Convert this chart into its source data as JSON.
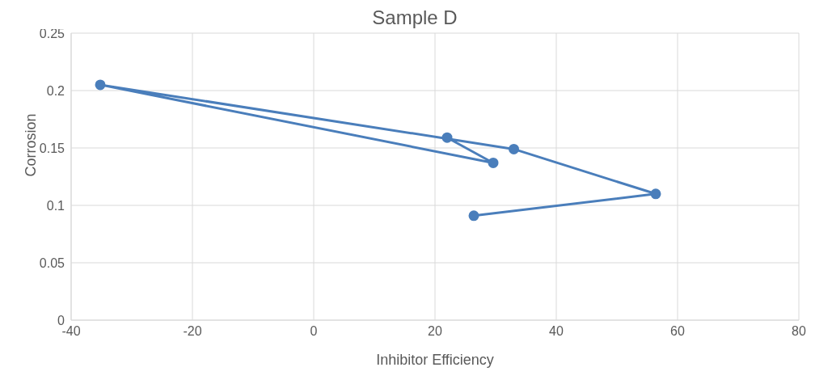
{
  "chart_data": {
    "type": "line",
    "title": "Sample D",
    "xlabel": "Inhibitor Efficiency",
    "ylabel": "Corrosion",
    "series": [
      {
        "color": "#4a7ebb",
        "x": [
          26.4,
          56.4,
          33.0,
          -35.2,
          29.6,
          22.0
        ],
        "values": [
          0.091,
          0.11,
          0.149,
          0.205,
          0.137,
          0.159
        ]
      }
    ],
    "xlim": [
      -40,
      80
    ],
    "xticks": [
      -40,
      -20,
      0,
      20,
      40,
      60,
      80
    ],
    "ylim": [
      0,
      0.25
    ],
    "yticks": [
      0,
      0.05,
      0.1,
      0.15,
      0.2,
      0.25
    ],
    "grid": true,
    "legend": false,
    "marker": "circle",
    "line_style": "solid"
  }
}
